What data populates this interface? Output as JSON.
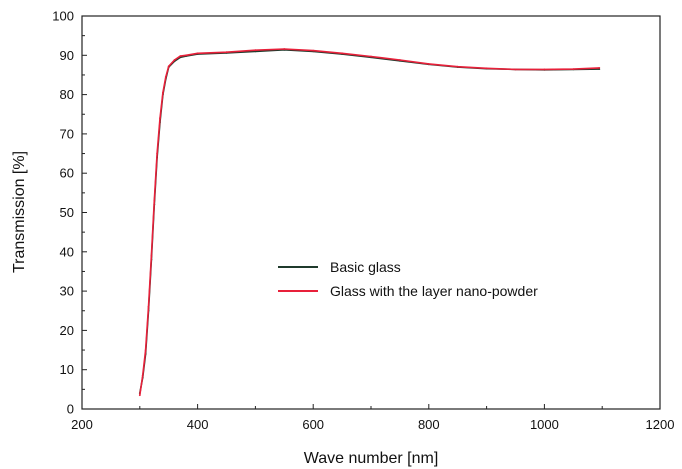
{
  "chart_data": {
    "type": "line",
    "title": "",
    "xlabel": "Wave number [nm]",
    "ylabel": "Transmission [%]",
    "xlim": [
      200,
      1200
    ],
    "ylim": [
      0,
      100
    ],
    "x_ticks": [
      200,
      400,
      600,
      800,
      1000,
      1200
    ],
    "y_ticks": [
      0,
      10,
      20,
      30,
      40,
      50,
      60,
      70,
      80,
      90,
      100
    ],
    "grid": false,
    "legend_position": "center",
    "series": [
      {
        "name": "Basic glass",
        "color": "#1f3a2c",
        "points": [
          [
            300,
            4
          ],
          [
            305,
            8
          ],
          [
            310,
            14
          ],
          [
            315,
            25
          ],
          [
            320,
            38
          ],
          [
            325,
            52
          ],
          [
            330,
            64
          ],
          [
            335,
            73
          ],
          [
            340,
            80
          ],
          [
            345,
            84
          ],
          [
            350,
            87
          ],
          [
            360,
            88.5
          ],
          [
            370,
            89.5
          ],
          [
            380,
            89.8
          ],
          [
            400,
            90.3
          ],
          [
            450,
            90.6
          ],
          [
            500,
            91
          ],
          [
            550,
            91.4
          ],
          [
            600,
            91
          ],
          [
            650,
            90.3
          ],
          [
            700,
            89.5
          ],
          [
            750,
            88.6
          ],
          [
            800,
            87.7
          ],
          [
            850,
            87
          ],
          [
            900,
            86.6
          ],
          [
            950,
            86.4
          ],
          [
            1000,
            86.3
          ],
          [
            1050,
            86.4
          ],
          [
            1095,
            86.5
          ]
        ]
      },
      {
        "name": "Glass with the layer nano-powder",
        "color": "#e8203a",
        "points": [
          [
            300,
            3.5
          ],
          [
            305,
            8.5
          ],
          [
            310,
            15
          ],
          [
            315,
            26
          ],
          [
            320,
            39
          ],
          [
            325,
            53
          ],
          [
            330,
            65
          ],
          [
            335,
            74
          ],
          [
            340,
            80.5
          ],
          [
            345,
            84.5
          ],
          [
            350,
            87.2
          ],
          [
            360,
            88.8
          ],
          [
            370,
            89.8
          ],
          [
            380,
            90
          ],
          [
            400,
            90.5
          ],
          [
            450,
            90.8
          ],
          [
            500,
            91.3
          ],
          [
            550,
            91.6
          ],
          [
            600,
            91.2
          ],
          [
            650,
            90.5
          ],
          [
            700,
            89.7
          ],
          [
            750,
            88.8
          ],
          [
            800,
            87.8
          ],
          [
            850,
            87.1
          ],
          [
            900,
            86.7
          ],
          [
            950,
            86.4
          ],
          [
            1000,
            86.4
          ],
          [
            1050,
            86.5
          ],
          [
            1095,
            86.8
          ]
        ]
      }
    ]
  }
}
